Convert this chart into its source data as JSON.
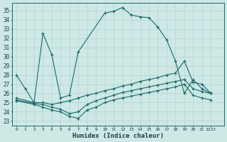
{
  "xlabel": "Humidex (Indice chaleur)",
  "bg_color": "#cde8e5",
  "line_color": "#1a6b6b",
  "grid_color": "#b8d8d5",
  "xlim": [
    -0.5,
    23.5
  ],
  "ylim": [
    22.5,
    35.8
  ],
  "yticks": [
    23,
    24,
    25,
    26,
    27,
    28,
    29,
    30,
    31,
    32,
    33,
    34,
    35
  ],
  "xtick_positions": [
    0,
    1,
    2,
    3,
    4,
    5,
    6,
    7,
    8,
    9,
    10,
    11,
    12,
    13,
    14,
    15,
    16,
    17,
    18,
    19,
    20,
    21,
    22
  ],
  "xtick_labels": [
    "0",
    "1",
    "2",
    "3",
    "4",
    "5",
    "6",
    "7",
    "8",
    "9",
    "10",
    "11",
    "12",
    "13",
    "14",
    "15",
    "16",
    "17",
    "18",
    "19",
    "20",
    "21",
    "2223"
  ],
  "line1_x": [
    0,
    1,
    2,
    3,
    4,
    5,
    6,
    7,
    10,
    11,
    12,
    13,
    14,
    15,
    16,
    17,
    18,
    19,
    20,
    21,
    22
  ],
  "line1_y": [
    28.0,
    26.5,
    25.0,
    32.5,
    30.2,
    25.5,
    25.8,
    30.5,
    34.7,
    34.9,
    35.3,
    34.5,
    34.3,
    34.2,
    33.2,
    31.8,
    29.5,
    26.0,
    27.5,
    26.5,
    26.0
  ],
  "line2_x": [
    0,
    2,
    3,
    4,
    5,
    6,
    7,
    8,
    9,
    10,
    11,
    12,
    13,
    14,
    15,
    16,
    17,
    18,
    19,
    20,
    21,
    22
  ],
  "line2_y": [
    25.5,
    25.0,
    25.0,
    24.8,
    25.0,
    25.2,
    25.5,
    25.8,
    26.0,
    26.3,
    26.5,
    26.8,
    27.0,
    27.3,
    27.5,
    27.7,
    28.0,
    28.2,
    29.5,
    27.2,
    27.0,
    26.0
  ],
  "line3_x": [
    0,
    2,
    3,
    4,
    5,
    6,
    7,
    8,
    9,
    10,
    11,
    12,
    13,
    14,
    15,
    16,
    17,
    18,
    19,
    20,
    21,
    22
  ],
  "line3_y": [
    25.3,
    24.9,
    24.8,
    24.5,
    24.3,
    23.8,
    24.0,
    24.8,
    25.2,
    25.5,
    25.8,
    26.1,
    26.3,
    26.5,
    26.7,
    26.9,
    27.1,
    27.3,
    27.5,
    26.5,
    26.2,
    26.0
  ],
  "line4_x": [
    0,
    2,
    3,
    4,
    5,
    6,
    7,
    8,
    9,
    10,
    11,
    12,
    13,
    14,
    15,
    16,
    17,
    18,
    19,
    20,
    21,
    22
  ],
  "line4_y": [
    25.2,
    24.8,
    24.5,
    24.2,
    24.0,
    23.5,
    23.3,
    24.2,
    24.5,
    25.0,
    25.3,
    25.5,
    25.7,
    25.9,
    26.1,
    26.3,
    26.5,
    26.7,
    27.0,
    25.8,
    25.5,
    25.3
  ]
}
